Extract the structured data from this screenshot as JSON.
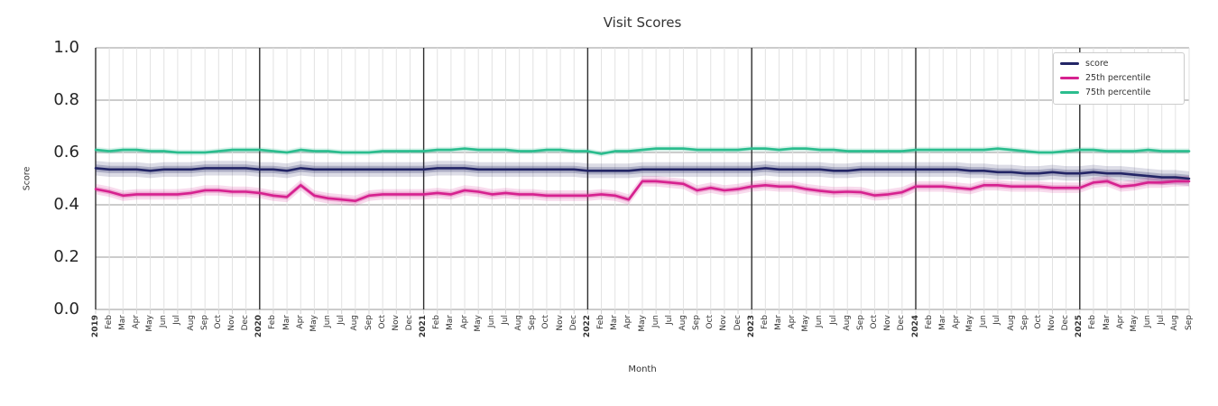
{
  "chart_data": {
    "type": "line",
    "title": "Visit Scores",
    "xlabel": "Month",
    "ylabel": "Score",
    "ylim": [
      0.0,
      1.0
    ],
    "yticks": [
      0.0,
      0.2,
      0.4,
      0.6,
      0.8,
      1.0
    ],
    "grid": true,
    "legend_position": "upper right",
    "x_labels": [
      "2019",
      "Feb",
      "Mar",
      "Apr",
      "May",
      "Jun",
      "Jul",
      "Aug",
      "Sep",
      "Oct",
      "Nov",
      "Dec",
      "2020",
      "Feb",
      "Mar",
      "Apr",
      "May",
      "Jun",
      "Jul",
      "Aug",
      "Sep",
      "Oct",
      "Nov",
      "Dec",
      "2021",
      "Feb",
      "Mar",
      "Apr",
      "May",
      "Jun",
      "Jul",
      "Aug",
      "Sep",
      "Oct",
      "Nov",
      "Dec",
      "2022",
      "Feb",
      "Mar",
      "Apr",
      "May",
      "Jun",
      "Jul",
      "Aug",
      "Sep",
      "Oct",
      "Nov",
      "Dec",
      "2023",
      "Feb",
      "Mar",
      "Apr",
      "May",
      "Jun",
      "Jul",
      "Aug",
      "Sep",
      "Oct",
      "Nov",
      "Dec",
      "2024",
      "Feb",
      "Mar",
      "Apr",
      "May",
      "Jun",
      "Jul",
      "Aug",
      "Sep",
      "Oct",
      "Nov",
      "Dec",
      "2025",
      "Feb",
      "Mar",
      "Apr",
      "May",
      "Jun",
      "Jul",
      "Aug",
      "Sep"
    ],
    "year_line_indices": [
      0,
      12,
      24,
      36,
      48,
      60,
      72
    ],
    "series": [
      {
        "name": "score",
        "color": "#232566",
        "band_halfwidth": 0.028,
        "values": [
          0.54,
          0.535,
          0.535,
          0.535,
          0.53,
          0.535,
          0.535,
          0.535,
          0.54,
          0.54,
          0.54,
          0.54,
          0.535,
          0.535,
          0.53,
          0.54,
          0.535,
          0.535,
          0.535,
          0.535,
          0.535,
          0.535,
          0.535,
          0.535,
          0.535,
          0.54,
          0.54,
          0.54,
          0.535,
          0.535,
          0.535,
          0.535,
          0.535,
          0.535,
          0.535,
          0.535,
          0.53,
          0.53,
          0.53,
          0.53,
          0.535,
          0.535,
          0.535,
          0.535,
          0.535,
          0.535,
          0.535,
          0.535,
          0.535,
          0.54,
          0.535,
          0.535,
          0.535,
          0.535,
          0.53,
          0.53,
          0.535,
          0.535,
          0.535,
          0.535,
          0.535,
          0.535,
          0.535,
          0.535,
          0.53,
          0.53,
          0.525,
          0.525,
          0.52,
          0.52,
          0.525,
          0.52,
          0.52,
          0.525,
          0.52,
          0.52,
          0.515,
          0.51,
          0.505,
          0.505,
          0.5
        ]
      },
      {
        "name": "25th percentile",
        "color": "#d6218f",
        "band_halfwidth": 0.02,
        "values": [
          0.46,
          0.45,
          0.435,
          0.44,
          0.44,
          0.44,
          0.44,
          0.445,
          0.455,
          0.455,
          0.45,
          0.45,
          0.445,
          0.435,
          0.43,
          0.475,
          0.435,
          0.425,
          0.42,
          0.415,
          0.435,
          0.44,
          0.44,
          0.44,
          0.44,
          0.445,
          0.44,
          0.455,
          0.45,
          0.44,
          0.445,
          0.44,
          0.44,
          0.435,
          0.435,
          0.435,
          0.435,
          0.44,
          0.435,
          0.42,
          0.49,
          0.49,
          0.485,
          0.48,
          0.455,
          0.465,
          0.455,
          0.46,
          0.47,
          0.475,
          0.47,
          0.47,
          0.46,
          0.453,
          0.448,
          0.45,
          0.448,
          0.436,
          0.44,
          0.448,
          0.47,
          0.47,
          0.47,
          0.465,
          0.46,
          0.475,
          0.475,
          0.47,
          0.47,
          0.47,
          0.465,
          0.465,
          0.465,
          0.485,
          0.49,
          0.47,
          0.475,
          0.485,
          0.485,
          0.49,
          0.49
        ]
      },
      {
        "name": "75th percentile",
        "color": "#2bbd8e",
        "band_halfwidth": 0.011,
        "values": [
          0.61,
          0.605,
          0.61,
          0.61,
          0.605,
          0.605,
          0.6,
          0.6,
          0.6,
          0.605,
          0.61,
          0.61,
          0.61,
          0.605,
          0.6,
          0.61,
          0.605,
          0.605,
          0.6,
          0.6,
          0.6,
          0.605,
          0.605,
          0.605,
          0.605,
          0.61,
          0.61,
          0.615,
          0.61,
          0.61,
          0.61,
          0.605,
          0.605,
          0.61,
          0.61,
          0.605,
          0.605,
          0.595,
          0.605,
          0.605,
          0.61,
          0.615,
          0.615,
          0.615,
          0.61,
          0.61,
          0.61,
          0.61,
          0.615,
          0.615,
          0.61,
          0.615,
          0.615,
          0.61,
          0.61,
          0.605,
          0.605,
          0.605,
          0.605,
          0.605,
          0.61,
          0.61,
          0.61,
          0.61,
          0.61,
          0.61,
          0.615,
          0.61,
          0.605,
          0.6,
          0.6,
          0.605,
          0.61,
          0.61,
          0.605,
          0.605,
          0.605,
          0.61,
          0.605,
          0.605,
          0.605
        ]
      }
    ]
  },
  "colors": {
    "text": "#333333",
    "tick_text": "#262626",
    "grid_horizontal": "#cccccc",
    "grid_vertical": "#e2e2e2",
    "year_line": "#2e2e2e",
    "background": "#ffffff"
  }
}
